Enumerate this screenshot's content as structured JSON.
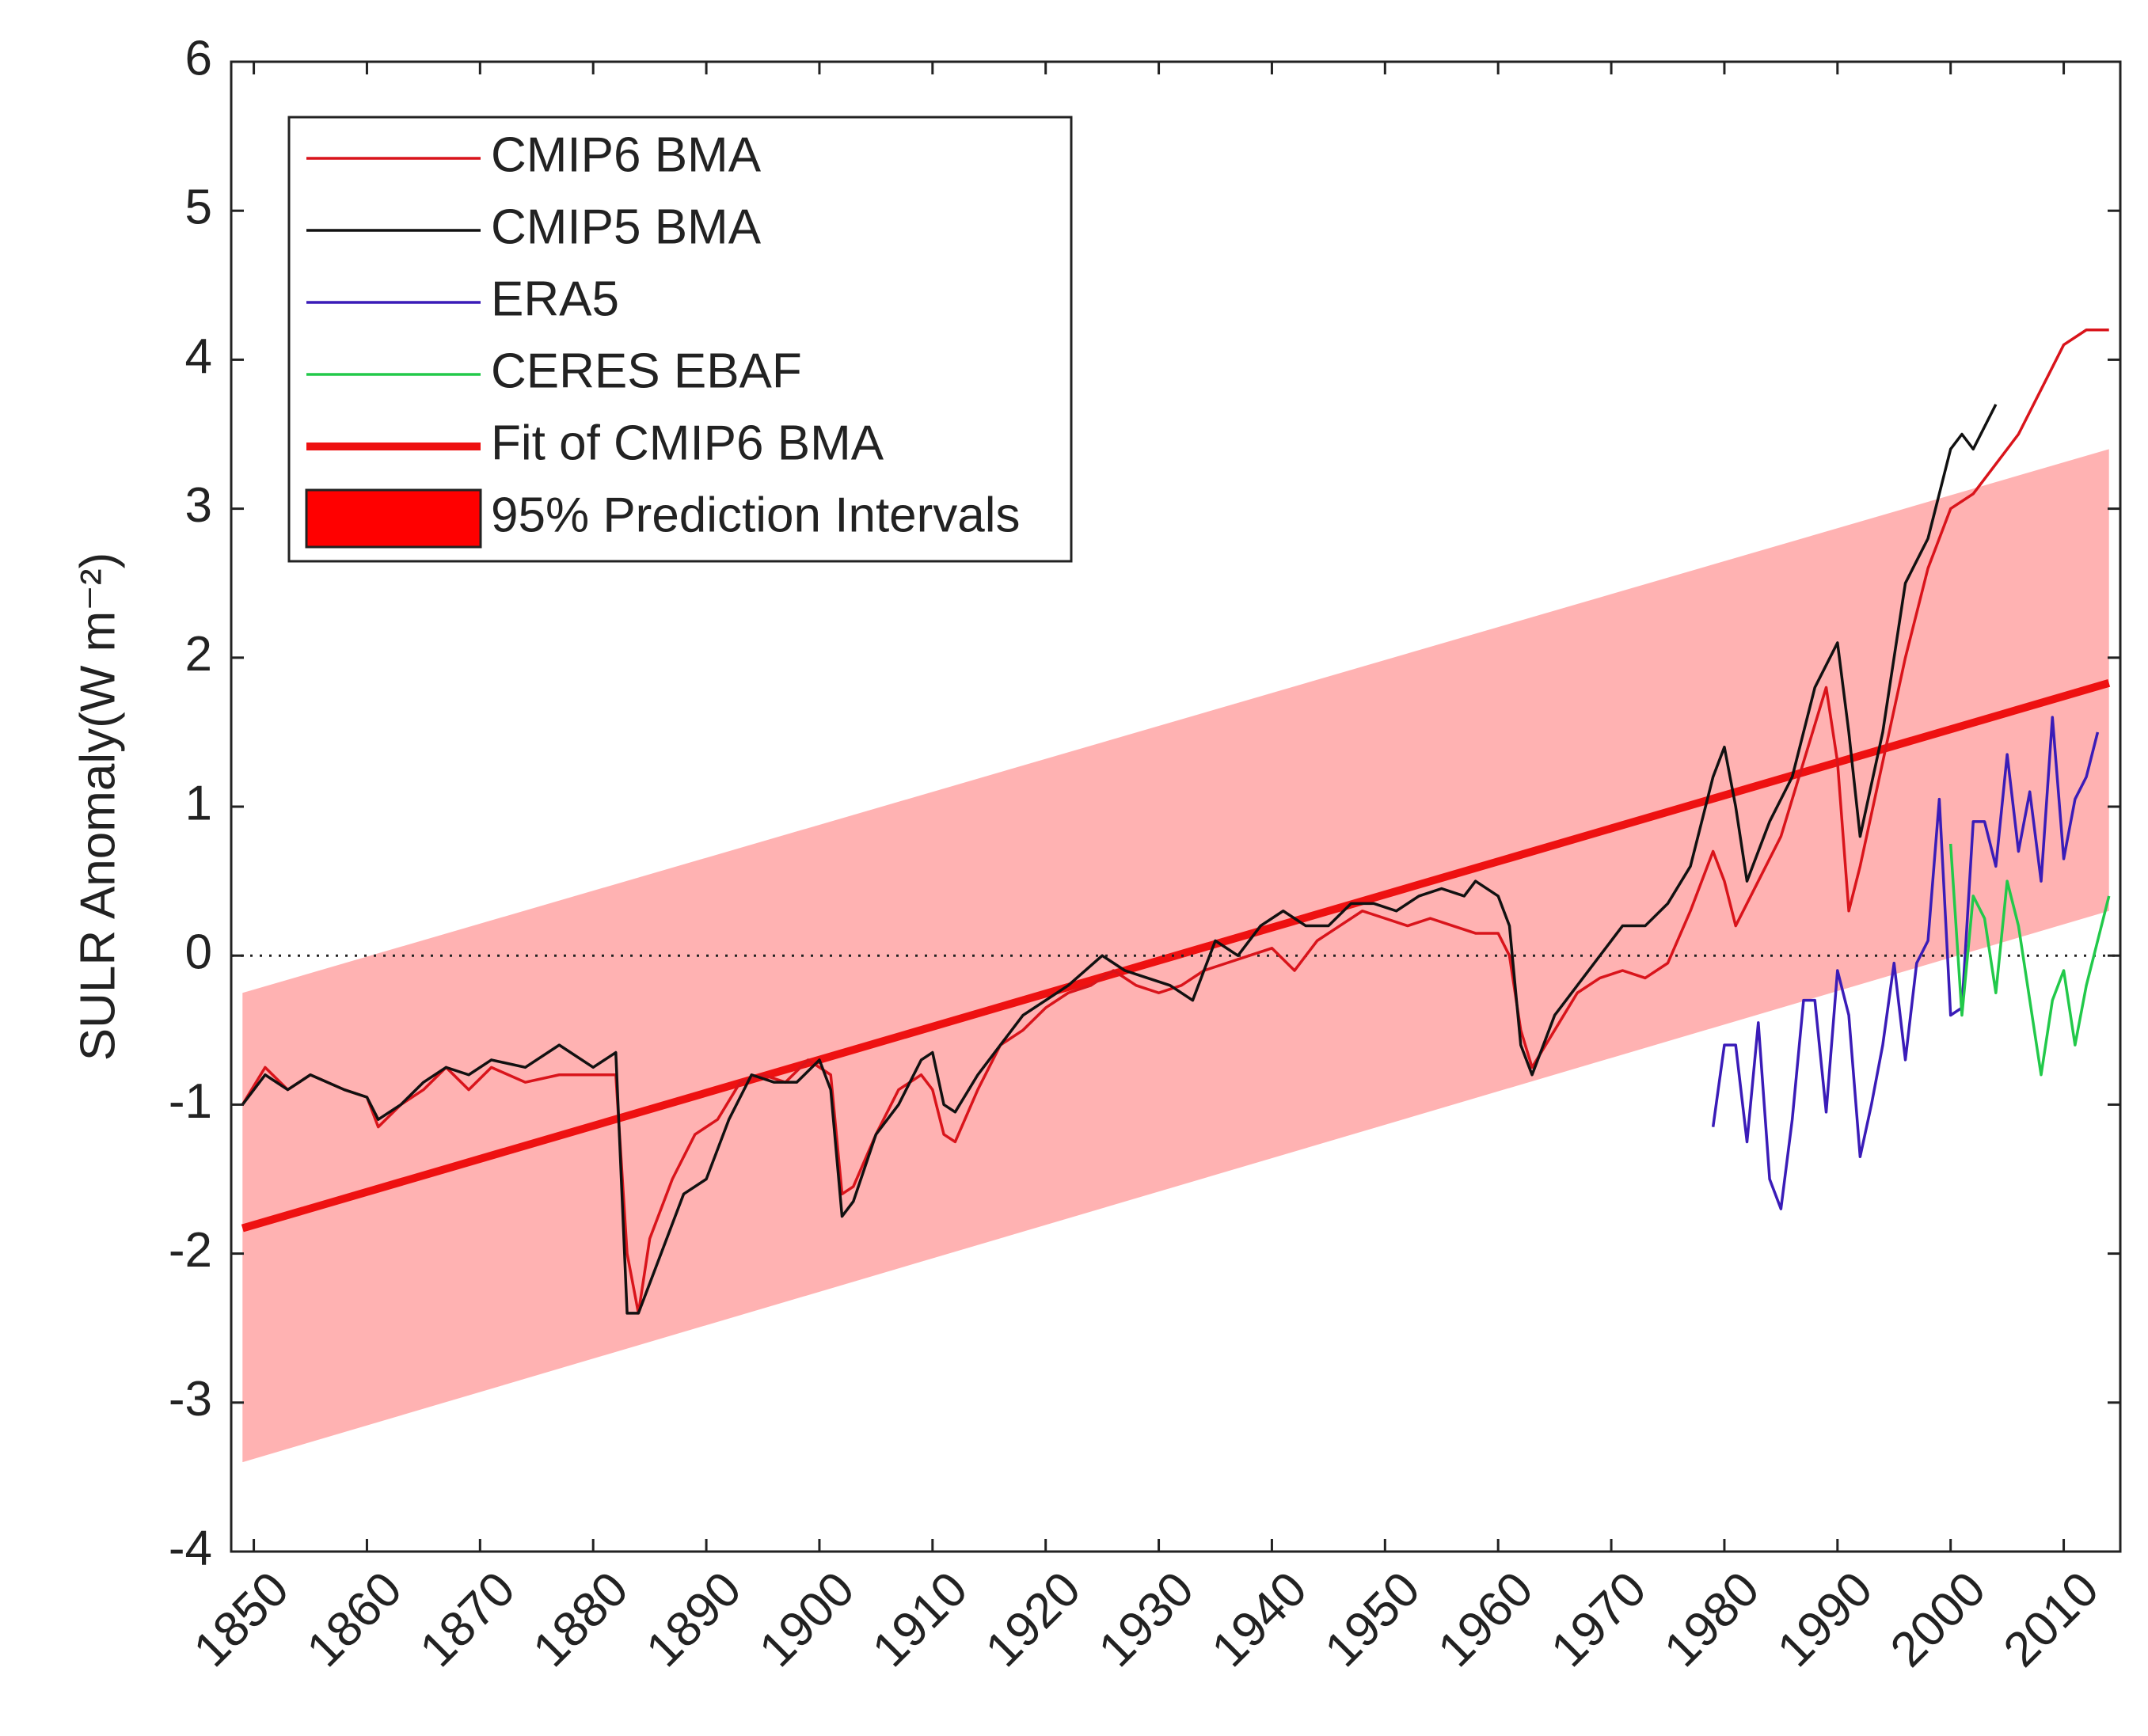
{
  "chart_data": {
    "type": "line",
    "ylabel": "SULR Anomaly(W m⁻²)",
    "xlim": [
      1848,
      2015
    ],
    "ylim": [
      -4,
      6
    ],
    "xticks": [
      1850,
      1860,
      1870,
      1880,
      1890,
      1900,
      1910,
      1920,
      1930,
      1940,
      1950,
      1960,
      1970,
      1980,
      1990,
      2000,
      2010
    ],
    "yticks": [
      -4,
      -3,
      -2,
      -1,
      0,
      1,
      2,
      3,
      4,
      5,
      6
    ],
    "zero_line": true,
    "legend": "upper left",
    "series": [
      {
        "name": "CMIP6 BMA",
        "kind": "line",
        "color": "#d9141b",
        "x": [
          1849,
          1851,
          1853,
          1855,
          1858,
          1860,
          1861,
          1863,
          1865,
          1867,
          1869,
          1871,
          1874,
          1877,
          1880,
          1882,
          1883,
          1884,
          1885,
          1887,
          1889,
          1891,
          1893,
          1895,
          1897,
          1899,
          1901,
          1902,
          1903,
          1905,
          1907,
          1909,
          1910,
          1911,
          1912,
          1914,
          1916,
          1918,
          1920,
          1922,
          1924,
          1926,
          1928,
          1930,
          1932,
          1934,
          1936,
          1938,
          1940,
          1942,
          1944,
          1946,
          1948,
          1950,
          1952,
          1954,
          1956,
          1958,
          1960,
          1961,
          1962,
          1963,
          1965,
          1967,
          1969,
          1971,
          1973,
          1975,
          1977,
          1979,
          1980,
          1981,
          1983,
          1985,
          1987,
          1989,
          1990,
          1991,
          1992,
          1994,
          1996,
          1998,
          2000,
          2002,
          2004,
          2006,
          2008,
          2010,
          2012,
          2014
        ],
        "values": [
          -1.0,
          -0.75,
          -0.9,
          -0.8,
          -0.9,
          -0.95,
          -1.15,
          -1.0,
          -0.9,
          -0.75,
          -0.9,
          -0.75,
          -0.85,
          -0.8,
          -0.8,
          -0.8,
          -2.0,
          -2.4,
          -1.9,
          -1.5,
          -1.2,
          -1.1,
          -0.85,
          -0.8,
          -0.85,
          -0.7,
          -0.8,
          -1.6,
          -1.55,
          -1.2,
          -0.9,
          -0.8,
          -0.9,
          -1.2,
          -1.25,
          -0.9,
          -0.6,
          -0.5,
          -0.35,
          -0.25,
          -0.2,
          -0.1,
          -0.2,
          -0.25,
          -0.2,
          -0.1,
          -0.05,
          0.0,
          0.05,
          -0.1,
          0.1,
          0.2,
          0.3,
          0.25,
          0.2,
          0.25,
          0.2,
          0.15,
          0.15,
          0.0,
          -0.5,
          -0.75,
          -0.5,
          -0.25,
          -0.15,
          -0.1,
          -0.15,
          -0.05,
          0.3,
          0.7,
          0.5,
          0.2,
          0.5,
          0.8,
          1.3,
          1.8,
          1.3,
          0.3,
          0.6,
          1.3,
          2.0,
          2.6,
          3.0,
          3.1,
          3.3,
          3.5,
          3.8,
          4.1,
          4.2,
          4.2
        ]
      },
      {
        "name": "CMIP5 BMA",
        "kind": "line",
        "color": "#111111",
        "x": [
          1849,
          1851,
          1853,
          1855,
          1858,
          1860,
          1861,
          1863,
          1865,
          1867,
          1869,
          1871,
          1874,
          1877,
          1880,
          1882,
          1883,
          1884,
          1886,
          1888,
          1890,
          1892,
          1894,
          1896,
          1898,
          1900,
          1901,
          1902,
          1903,
          1905,
          1907,
          1909,
          1910,
          1911,
          1912,
          1914,
          1916,
          1918,
          1920,
          1922,
          1925,
          1927,
          1929,
          1931,
          1933,
          1935,
          1937,
          1939,
          1941,
          1943,
          1945,
          1947,
          1949,
          1951,
          1953,
          1955,
          1957,
          1958,
          1960,
          1961,
          1962,
          1963,
          1965,
          1967,
          1969,
          1971,
          1973,
          1975,
          1977,
          1979,
          1980,
          1981,
          1982,
          1984,
          1986,
          1988,
          1990,
          1991,
          1992,
          1994,
          1996,
          1998,
          2000,
          2001,
          2002,
          2004
        ],
        "values": [
          -1.0,
          -0.8,
          -0.9,
          -0.8,
          -0.9,
          -0.95,
          -1.1,
          -1.0,
          -0.85,
          -0.75,
          -0.8,
          -0.7,
          -0.75,
          -0.6,
          -0.75,
          -0.65,
          -2.4,
          -2.4,
          -2.0,
          -1.6,
          -1.5,
          -1.1,
          -0.8,
          -0.85,
          -0.85,
          -0.7,
          -0.9,
          -1.75,
          -1.65,
          -1.2,
          -1.0,
          -0.7,
          -0.65,
          -1.0,
          -1.05,
          -0.8,
          -0.6,
          -0.4,
          -0.3,
          -0.2,
          0.0,
          -0.1,
          -0.15,
          -0.2,
          -0.3,
          0.1,
          0.0,
          0.2,
          0.3,
          0.2,
          0.2,
          0.35,
          0.35,
          0.3,
          0.4,
          0.45,
          0.4,
          0.5,
          0.4,
          0.2,
          -0.6,
          -0.8,
          -0.4,
          -0.2,
          0.0,
          0.2,
          0.2,
          0.35,
          0.6,
          1.2,
          1.4,
          1.0,
          0.5,
          0.9,
          1.2,
          1.8,
          2.1,
          1.5,
          0.8,
          1.5,
          2.5,
          2.8,
          3.4,
          3.5,
          3.4,
          3.7
        ]
      },
      {
        "name": "ERA5",
        "kind": "line",
        "color": "#3a1cb8",
        "x": [
          1979,
          1980,
          1981,
          1982,
          1983,
          1984,
          1985,
          1986,
          1987,
          1988,
          1989,
          1990,
          1991,
          1992,
          1993,
          1994,
          1995,
          1996,
          1997,
          1998,
          1999,
          2000,
          2001,
          2002,
          2003,
          2004,
          2005,
          2006,
          2007,
          2008,
          2009,
          2010,
          2011,
          2012,
          2013
        ],
        "values": [
          -1.15,
          -0.6,
          -0.6,
          -1.25,
          -0.45,
          -1.5,
          -1.7,
          -1.1,
          -0.3,
          -0.3,
          -1.05,
          -0.1,
          -0.4,
          -1.35,
          -1.0,
          -0.6,
          -0.05,
          -0.7,
          -0.05,
          0.1,
          1.05,
          -0.4,
          -0.35,
          0.9,
          0.9,
          0.6,
          1.35,
          0.7,
          1.1,
          0.5,
          1.6,
          0.65,
          1.05,
          1.2,
          1.5
        ]
      },
      {
        "name": "CERES EBAF",
        "kind": "line",
        "color": "#22c94a",
        "x": [
          2000,
          2001,
          2002,
          2003,
          2004,
          2005,
          2006,
          2007,
          2008,
          2009,
          2010,
          2011,
          2012,
          2013,
          2014
        ],
        "values": [
          0.75,
          -0.4,
          0.4,
          0.25,
          -0.25,
          0.5,
          0.2,
          -0.3,
          -0.8,
          -0.3,
          -0.1,
          -0.6,
          -0.2,
          0.1,
          0.4
        ]
      },
      {
        "name": "Fit of CMIP6 BMA",
        "kind": "fit",
        "color": "#ee1111",
        "x": [
          1849,
          2014
        ],
        "values": [
          -1.83,
          1.83
        ]
      },
      {
        "name": "95% Prediction Intervals",
        "kind": "band",
        "color": "#ff0000",
        "opacity": 0.3,
        "x": [
          1849,
          2014
        ],
        "upper": [
          -0.25,
          3.4
        ],
        "lower": [
          -3.4,
          0.3
        ]
      }
    ]
  }
}
